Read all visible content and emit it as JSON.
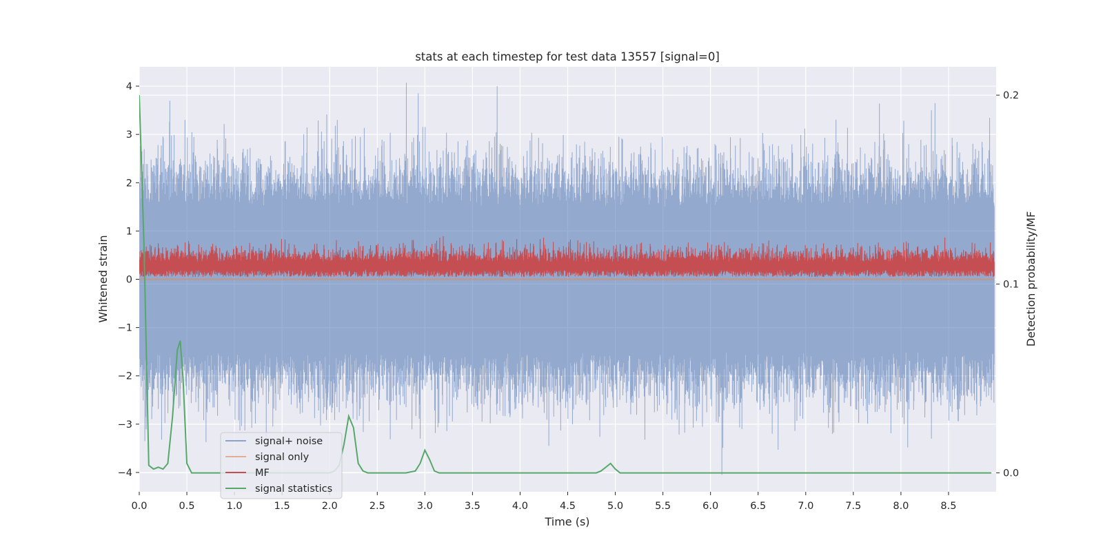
{
  "chart_data": {
    "type": "line",
    "title": "stats at each timestep for test data 13557 [signal=0]",
    "xlabel": "Time (s)",
    "ylabel": "Whitened strain",
    "ylabel_right": "Detection probability/MF",
    "xlim": [
      0,
      9.0
    ],
    "ylim": [
      -4.4,
      4.4
    ],
    "ylim_right": [
      -0.01,
      0.215
    ],
    "x_ticks": [
      "0.0",
      "0.5",
      "1.0",
      "1.5",
      "2.0",
      "2.5",
      "3.0",
      "3.5",
      "4.0",
      "4.5",
      "5.0",
      "5.5",
      "6.0",
      "6.5",
      "7.0",
      "7.5",
      "8.0",
      "8.5"
    ],
    "y_ticks": [
      "4",
      "3",
      "2",
      "1",
      "0",
      "−1",
      "−2",
      "−3",
      "−4"
    ],
    "y_ticks_right": [
      "0.2",
      "0.1",
      "0.0"
    ],
    "grid": true,
    "legend_position": "lower-left",
    "series": [
      {
        "name": "signal+ noise",
        "color": "#4c72b0",
        "axis": "left",
        "description": "whitened strain noise band",
        "typical_range": [
          -2.0,
          2.0
        ],
        "peaks": [
          {
            "x": 0.32,
            "y": 3.7
          },
          {
            "x": 0.48,
            "y": 3.3
          },
          {
            "x": 2.08,
            "y": 3.3
          },
          {
            "x": 2.93,
            "y": 3.85
          },
          {
            "x": 3.76,
            "y": 4.0
          },
          {
            "x": 8.32,
            "y": 3.5
          }
        ],
        "troughs": [
          {
            "x": 0.07,
            "y": -2.85
          },
          {
            "x": 2.95,
            "y": -3.3
          },
          {
            "x": 4.3,
            "y": -3.45
          },
          {
            "x": 6.12,
            "y": -4.05
          },
          {
            "x": 6.33,
            "y": -3.1
          },
          {
            "x": 7.28,
            "y": -3.2
          },
          {
            "x": 8.32,
            "y": -3.3
          }
        ]
      },
      {
        "name": "signal only",
        "color": "#dd8452",
        "axis": "left",
        "values_constant": 0
      },
      {
        "name": "MF",
        "color": "#c44e52",
        "axis": "left",
        "typical_range": [
          0.0,
          0.7
        ],
        "max": 1.0
      },
      {
        "name": "signal statistics",
        "color": "#55a868",
        "axis": "right",
        "x": [
          0.0,
          0.05,
          0.1,
          0.15,
          0.2,
          0.25,
          0.3,
          0.35,
          0.4,
          0.43,
          0.46,
          0.5,
          0.55,
          0.6,
          1.0,
          1.5,
          2.0,
          2.05,
          2.1,
          2.15,
          2.2,
          2.25,
          2.3,
          2.35,
          2.4,
          2.5,
          2.8,
          2.9,
          2.95,
          3.0,
          3.05,
          3.1,
          3.15,
          3.2,
          3.5,
          4.0,
          4.5,
          4.8,
          4.85,
          4.9,
          4.95,
          5.0,
          5.05,
          5.1,
          5.5,
          6.0,
          7.0,
          8.0,
          8.95
        ],
        "values": [
          0.2,
          0.12,
          0.004,
          0.002,
          0.003,
          0.002,
          0.005,
          0.03,
          0.065,
          0.07,
          0.05,
          0.005,
          0.0,
          0.0,
          0.0,
          0.0,
          0.0,
          0.001,
          0.004,
          0.015,
          0.03,
          0.024,
          0.005,
          0.001,
          0.0,
          0.0,
          0.0,
          0.001,
          0.005,
          0.012,
          0.007,
          0.001,
          0.0,
          0.0,
          0.0,
          0.0,
          0.0,
          0.0,
          0.001,
          0.003,
          0.005,
          0.002,
          0.0,
          0.0,
          0.0,
          0.0,
          0.0,
          0.0,
          0.0
        ]
      }
    ]
  }
}
